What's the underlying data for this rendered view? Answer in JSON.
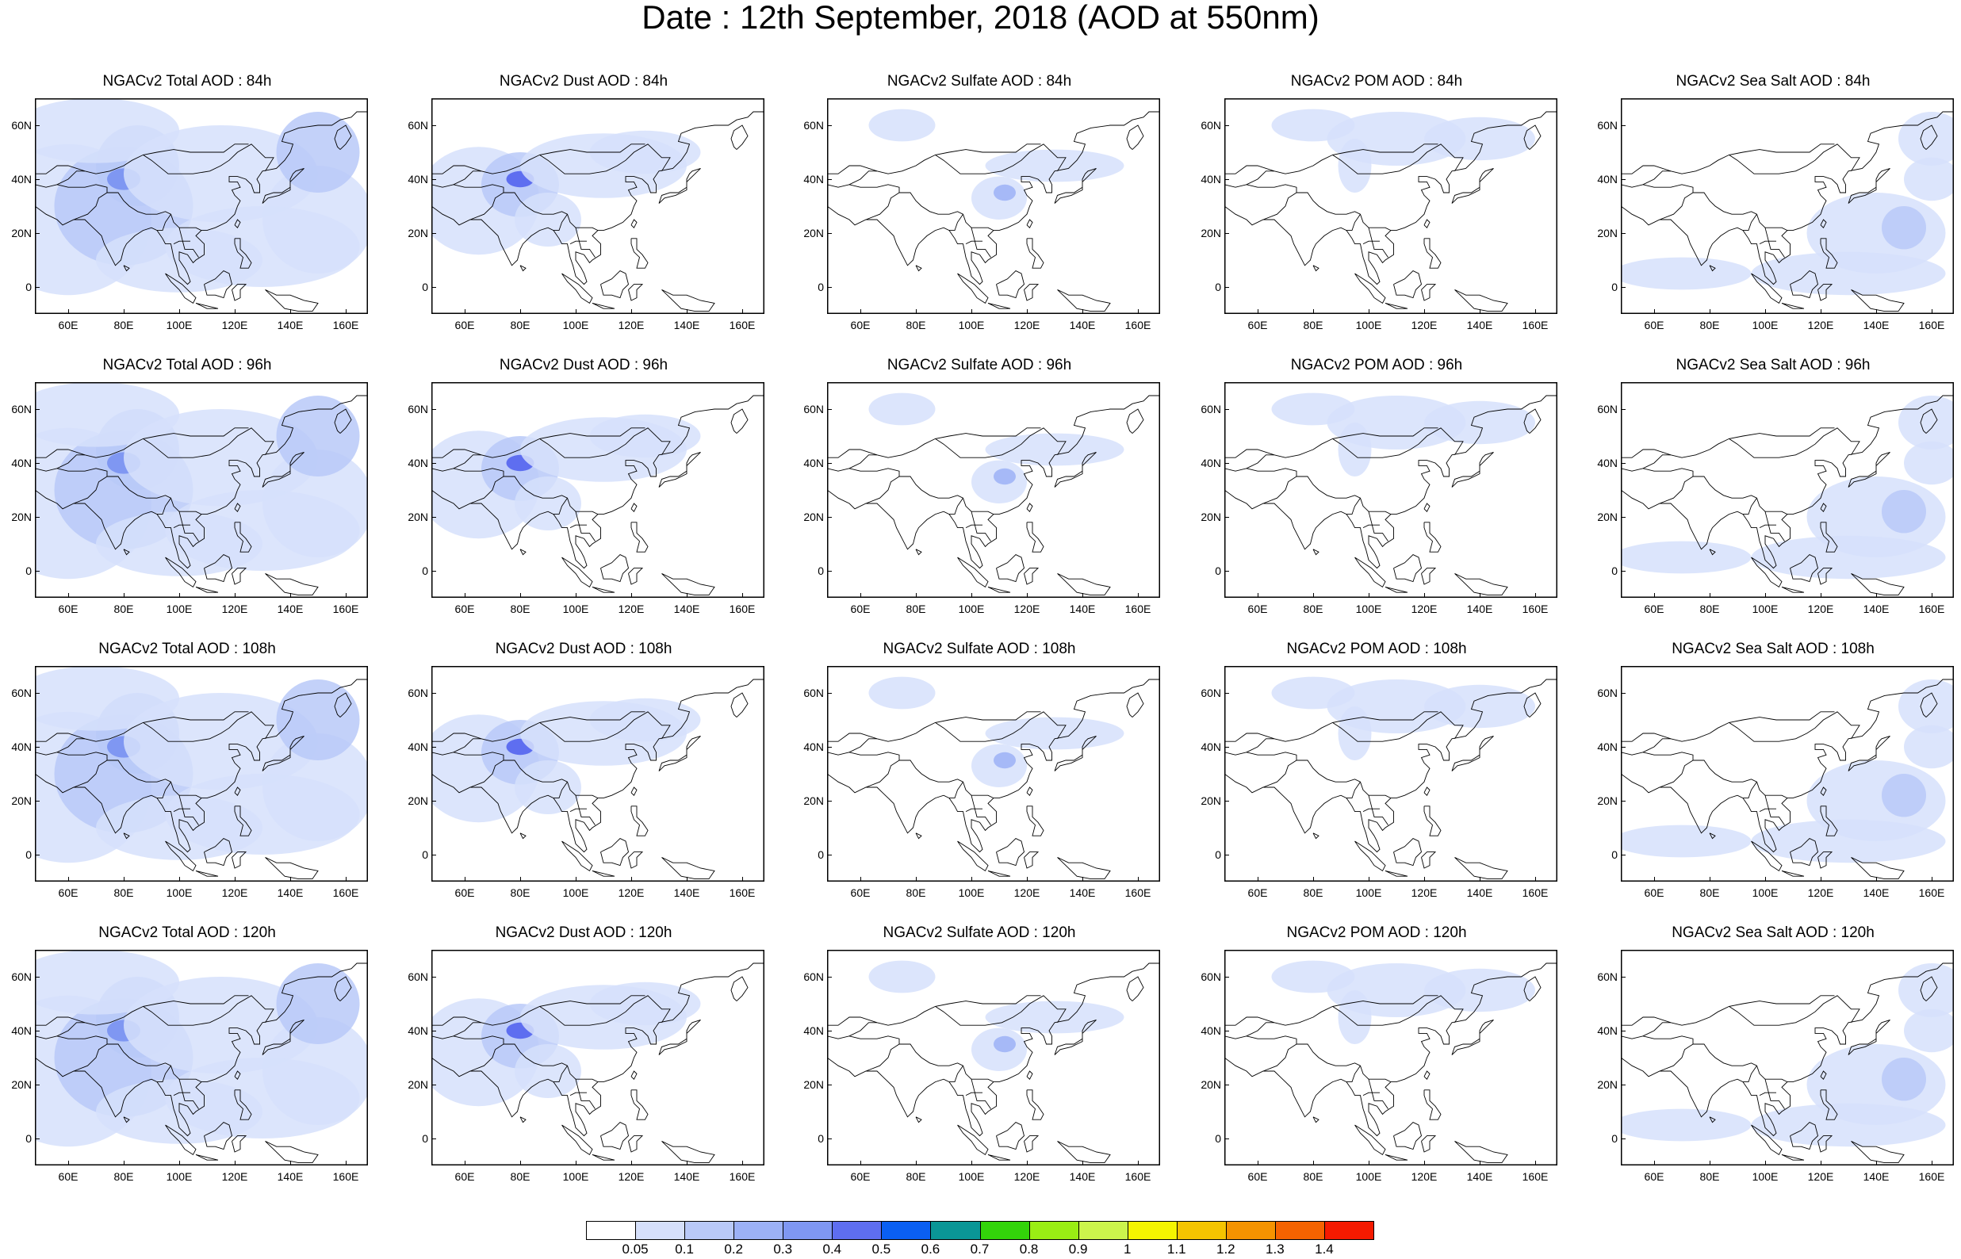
{
  "title": "Date : 12th September, 2018 (AOD at 550nm)",
  "x_ticks": [
    "60E",
    "80E",
    "100E",
    "120E",
    "140E",
    "160E"
  ],
  "y_ticks": [
    "60N",
    "40N",
    "20N",
    "0"
  ],
  "rows": [
    {
      "panels": [
        {
          "title": "NGACv2 Total AOD : 84h",
          "intensity": 1.0
        },
        {
          "title": "NGACv2 Dust AOD : 84h",
          "intensity": 0.75
        },
        {
          "title": "NGACv2 Sulfate AOD : 84h",
          "intensity": 0.3
        },
        {
          "title": "NGACv2 POM AOD : 84h",
          "intensity": 0.3
        },
        {
          "title": "NGACv2 Sea Salt AOD : 84h",
          "intensity": 0.45
        }
      ]
    },
    {
      "panels": [
        {
          "title": "NGACv2 Total AOD : 96h",
          "intensity": 1.0
        },
        {
          "title": "NGACv2 Dust AOD : 96h",
          "intensity": 0.75
        },
        {
          "title": "NGACv2 Sulfate AOD : 96h",
          "intensity": 0.35
        },
        {
          "title": "NGACv2 POM AOD : 96h",
          "intensity": 0.3
        },
        {
          "title": "NGACv2 Sea Salt AOD : 96h",
          "intensity": 0.45
        }
      ]
    },
    {
      "panels": [
        {
          "title": "NGACv2 Total AOD : 108h",
          "intensity": 1.0
        },
        {
          "title": "NGACv2 Dust AOD : 108h",
          "intensity": 0.75
        },
        {
          "title": "NGACv2 Sulfate AOD : 108h",
          "intensity": 0.35
        },
        {
          "title": "NGACv2 POM AOD : 108h",
          "intensity": 0.3
        },
        {
          "title": "NGACv2 Sea Salt AOD : 108h",
          "intensity": 0.45
        }
      ]
    },
    {
      "panels": [
        {
          "title": "NGACv2 Total AOD : 120h",
          "intensity": 1.0
        },
        {
          "title": "NGACv2 Dust AOD : 120h",
          "intensity": 0.75
        },
        {
          "title": "NGACv2 Sulfate AOD : 120h",
          "intensity": 0.35
        },
        {
          "title": "NGACv2 POM AOD : 120h",
          "intensity": 0.3
        },
        {
          "title": "NGACv2 Sea Salt  AOD : 120h",
          "intensity": 0.45
        }
      ]
    }
  ],
  "colorbar": {
    "labels": [
      "0.05",
      "0.1",
      "0.2",
      "0.3",
      "0.4",
      "0.5",
      "0.6",
      "0.7",
      "0.8",
      "0.9",
      "1",
      "1.1",
      "1.2",
      "1.3",
      "1.4"
    ],
    "colors": [
      "#ffffff",
      "#d6e0fb",
      "#b9c9f8",
      "#9cb1f6",
      "#7f97f2",
      "#5e6ef0",
      "#0a5ff2",
      "#0a9696",
      "#33d40a",
      "#9aee14",
      "#ccf44c",
      "#f5f500",
      "#f5c400",
      "#f59300",
      "#f56300",
      "#f51a00"
    ]
  }
}
